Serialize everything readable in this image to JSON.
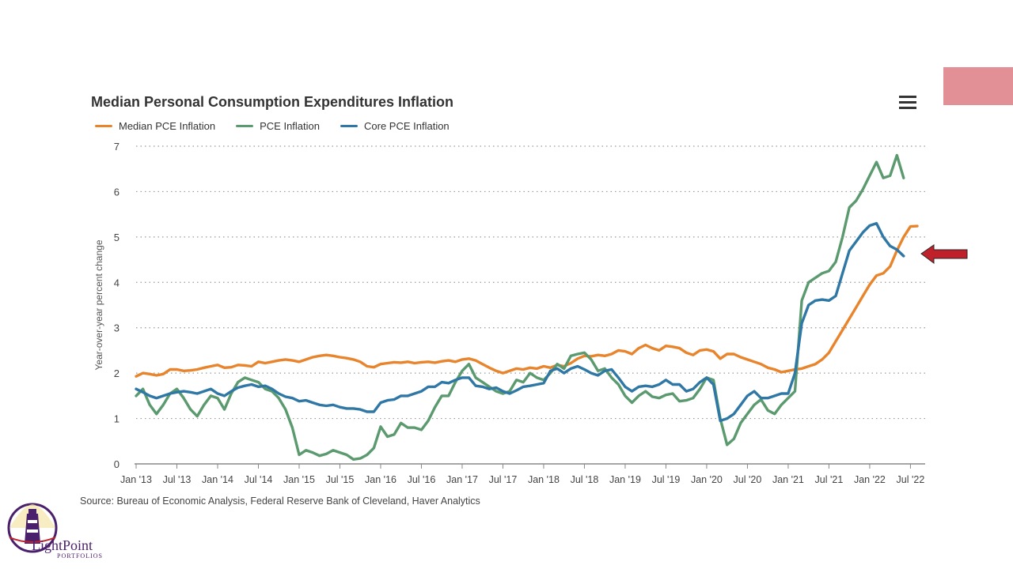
{
  "slide": {
    "source": "Source: Bureau of Economic Analysis, Federal Reserve Bank of Cleveland, Haver Analytics",
    "logo_text": "LightPoint",
    "logo_sub": "PORTFOLIOS",
    "highlight_color": "#e38f96",
    "arrow_color": "#c0202a"
  },
  "chart_data": {
    "type": "line",
    "title": "Median Personal Consumption Expenditures Inflation",
    "ylabel": "Year-over-year percent change",
    "xlabel": "",
    "ylim": [
      0,
      7
    ],
    "yticks": [
      0,
      1,
      2,
      3,
      4,
      5,
      6,
      7
    ],
    "x_start": "Jan '13",
    "x_end": "Jul '22",
    "xticks": [
      "Jan '13",
      "Jul '13",
      "Jan '14",
      "Jul '14",
      "Jan '15",
      "Jul '15",
      "Jan '16",
      "Jul '16",
      "Jan '17",
      "Jul '17",
      "Jan '18",
      "Jul '18",
      "Jan '19",
      "Jul '19",
      "Jan '20",
      "Jul '20",
      "Jan '21",
      "Jul '21",
      "Jan '22",
      "Jul '22"
    ],
    "grid": "horizontal dotted",
    "legend": "top-left",
    "series": [
      {
        "name": "Median PCE Inflation",
        "color": "#e8842c",
        "values": [
          1.93,
          2.0,
          1.98,
          1.95,
          1.98,
          2.08,
          2.08,
          2.05,
          2.06,
          2.08,
          2.12,
          2.15,
          2.18,
          2.12,
          2.13,
          2.18,
          2.17,
          2.15,
          2.25,
          2.22,
          2.25,
          2.28,
          2.3,
          2.28,
          2.25,
          2.3,
          2.35,
          2.38,
          2.4,
          2.38,
          2.35,
          2.33,
          2.3,
          2.25,
          2.15,
          2.13,
          2.2,
          2.22,
          2.24,
          2.23,
          2.25,
          2.22,
          2.24,
          2.25,
          2.23,
          2.26,
          2.28,
          2.25,
          2.3,
          2.32,
          2.28,
          2.2,
          2.12,
          2.05,
          2.0,
          2.05,
          2.1,
          2.08,
          2.12,
          2.1,
          2.15,
          2.12,
          2.18,
          2.15,
          2.22,
          2.32,
          2.38,
          2.37,
          2.4,
          2.38,
          2.42,
          2.5,
          2.48,
          2.42,
          2.55,
          2.62,
          2.55,
          2.5,
          2.6,
          2.58,
          2.55,
          2.45,
          2.4,
          2.5,
          2.52,
          2.48,
          2.32,
          2.42,
          2.42,
          2.35,
          2.3,
          2.25,
          2.2,
          2.12,
          2.08,
          2.02,
          2.05,
          2.08,
          2.1,
          2.15,
          2.2,
          2.3,
          2.45,
          2.7,
          2.95,
          3.2,
          3.45,
          3.7,
          3.95,
          4.15,
          4.2,
          4.35,
          4.7,
          5.0,
          5.23,
          5.24
        ]
      },
      {
        "name": "PCE Inflation",
        "color": "#5a9a6e",
        "values": [
          1.5,
          1.65,
          1.3,
          1.1,
          1.3,
          1.55,
          1.65,
          1.45,
          1.2,
          1.05,
          1.3,
          1.5,
          1.45,
          1.2,
          1.55,
          1.8,
          1.9,
          1.85,
          1.8,
          1.65,
          1.6,
          1.45,
          1.2,
          0.8,
          0.2,
          0.3,
          0.25,
          0.18,
          0.22,
          0.3,
          0.25,
          0.2,
          0.1,
          0.12,
          0.2,
          0.35,
          0.82,
          0.6,
          0.65,
          0.9,
          0.8,
          0.8,
          0.75,
          0.95,
          1.25,
          1.5,
          1.5,
          1.8,
          2.05,
          2.2,
          1.9,
          1.8,
          1.7,
          1.6,
          1.55,
          1.6,
          1.85,
          1.8,
          2.0,
          1.9,
          1.85,
          2.0,
          2.2,
          2.1,
          2.38,
          2.42,
          2.45,
          2.3,
          2.05,
          2.1,
          1.9,
          1.75,
          1.5,
          1.35,
          1.5,
          1.6,
          1.48,
          1.45,
          1.52,
          1.55,
          1.38,
          1.4,
          1.45,
          1.65,
          1.9,
          1.85,
          1.0,
          0.42,
          0.55,
          0.9,
          1.1,
          1.3,
          1.42,
          1.18,
          1.1,
          1.3,
          1.45,
          1.6,
          3.6,
          4.0,
          4.1,
          4.2,
          4.25,
          4.45,
          5.0,
          5.65,
          5.8,
          6.05,
          6.35,
          6.65,
          6.3,
          6.35,
          6.8,
          6.3
        ]
      },
      {
        "name": "Core PCE Inflation",
        "color": "#2f77a5",
        "values": [
          1.65,
          1.58,
          1.5,
          1.45,
          1.5,
          1.55,
          1.58,
          1.6,
          1.58,
          1.55,
          1.6,
          1.65,
          1.55,
          1.5,
          1.6,
          1.68,
          1.72,
          1.75,
          1.7,
          1.72,
          1.65,
          1.55,
          1.48,
          1.45,
          1.38,
          1.4,
          1.35,
          1.3,
          1.28,
          1.3,
          1.25,
          1.22,
          1.22,
          1.2,
          1.15,
          1.15,
          1.35,
          1.4,
          1.42,
          1.5,
          1.5,
          1.55,
          1.6,
          1.7,
          1.7,
          1.8,
          1.78,
          1.85,
          1.9,
          1.9,
          1.72,
          1.7,
          1.65,
          1.68,
          1.6,
          1.55,
          1.62,
          1.7,
          1.72,
          1.75,
          1.78,
          2.05,
          2.1,
          2.0,
          2.1,
          2.15,
          2.08,
          2.0,
          1.95,
          2.05,
          2.08,
          1.9,
          1.7,
          1.6,
          1.7,
          1.72,
          1.7,
          1.75,
          1.85,
          1.75,
          1.75,
          1.6,
          1.65,
          1.8,
          1.9,
          1.75,
          0.95,
          1.0,
          1.1,
          1.3,
          1.5,
          1.6,
          1.45,
          1.45,
          1.5,
          1.55,
          1.55,
          2.0,
          3.1,
          3.5,
          3.6,
          3.62,
          3.6,
          3.7,
          4.2,
          4.7,
          4.9,
          5.1,
          5.25,
          5.3,
          5.0,
          4.8,
          4.72,
          4.58
        ]
      }
    ]
  }
}
